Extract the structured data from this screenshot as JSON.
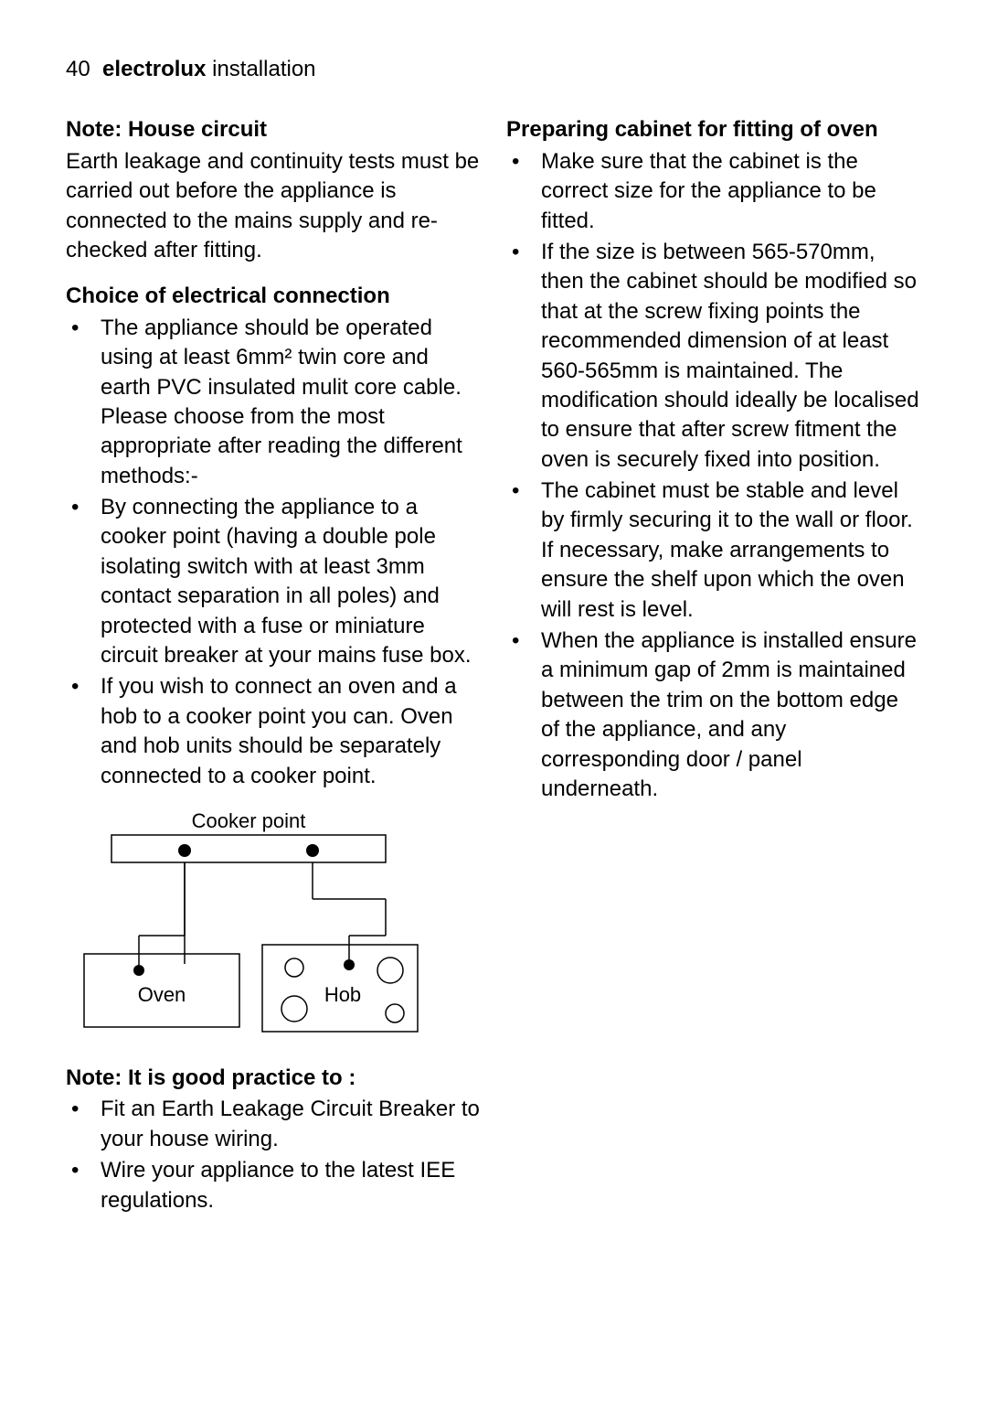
{
  "page": {
    "number": "40",
    "brand": "electrolux",
    "section": "installation"
  },
  "left": {
    "note_house_circuit_title": "Note: House circuit",
    "note_house_circuit_body": "Earth leakage and continuity tests must be carried out before the appliance is connected to the mains supply and re-checked after fitting.",
    "choice_title": "Choice of electrical connection",
    "choice_items": [
      "The appliance should be operated using at least 6mm² twin core and earth PVC insulated mulit core cable.  Please choose from the most appropriate after reading the different methods:-",
      "By connecting the appliance to a cooker point  (having a double pole isolating switch with at least 3mm contact separation in all poles) and protected with a fuse or miniature circuit breaker at your mains fuse box.",
      "If you wish to connect an oven and a hob to a cooker point you can.  Oven and hob units should be separately connected to a cooker point."
    ],
    "diagram": {
      "label_top": "Cooker point",
      "label_oven": "Oven",
      "label_hob": "Hob",
      "stroke": "#000000",
      "stroke_width": 1.5,
      "fill": "#ffffff",
      "dot_radius": 7,
      "ring_radius": 14,
      "small_ring_radius": 10
    },
    "good_practice_title": "Note:  It is good practice to :",
    "good_practice_items": [
      "Fit an Earth Leakage Circuit Breaker to your house wiring.",
      "Wire your appliance to the latest IEE regulations."
    ]
  },
  "right": {
    "prep_title": "Preparing cabinet for fitting of oven",
    "prep_items": [
      "Make sure that the cabinet is the correct size for the appliance to be fitted.",
      "If the size is between 565-570mm, then the cabinet should be modified so that at the screw fixing points the recommended dimension of at least 560-565mm is maintained. The modification should ideally be localised to ensure that after screw fitment the oven is securely fixed into position.",
      "The cabinet must be stable and level by firmly securing it to the wall or floor.  If necessary, make arrangements to ensure the shelf upon which the oven will rest is level.",
      "When the appliance is installed ensure a minimum gap of 2mm is maintained between the trim on the bottom edge of the appliance, and any corresponding door / panel underneath."
    ]
  }
}
